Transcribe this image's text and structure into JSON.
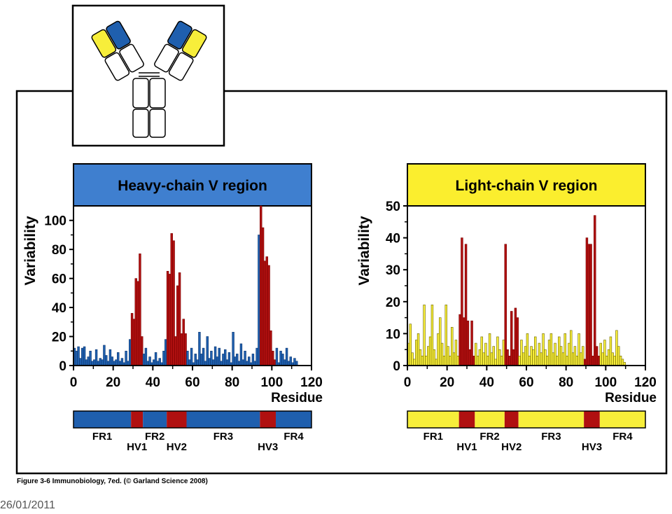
{
  "figure": {
    "caption": "Figure 3-6 Immunobiology, 7ed. (© Garland Science 2008)",
    "date": "26/01/2011"
  },
  "colors": {
    "heavy": "#1f5fae",
    "heavy_header": "#3f7fcf",
    "light": "#f7ee3a",
    "light_header": "#fbee2e",
    "hv": "#b01010",
    "hv_dark": "#7a0000"
  },
  "chart_data": [
    {
      "type": "bar",
      "title": "Heavy-chain V region",
      "xlabel": "Residue",
      "ylabel": "Variability",
      "xlim": [
        0,
        120
      ],
      "ylim": [
        0,
        110
      ],
      "xticks": [
        0,
        20,
        40,
        60,
        80,
        100,
        120
      ],
      "yticks": [
        0,
        20,
        40,
        60,
        80,
        100
      ],
      "series_colors": {
        "framework": "#1f5fae",
        "hypervariable": "#b01010"
      },
      "hypervariable_ranges": [
        [
          29,
          35
        ],
        [
          47,
          57
        ],
        [
          94,
          102
        ]
      ],
      "x": [
        1,
        2,
        3,
        4,
        5,
        6,
        7,
        8,
        9,
        10,
        11,
        12,
        13,
        14,
        15,
        16,
        17,
        18,
        19,
        20,
        21,
        22,
        23,
        24,
        25,
        26,
        27,
        28,
        29,
        30,
        31,
        32,
        33,
        34,
        35,
        36,
        37,
        38,
        39,
        40,
        41,
        42,
        43,
        44,
        45,
        46,
        47,
        48,
        49,
        50,
        51,
        52,
        53,
        54,
        55,
        56,
        57,
        58,
        59,
        60,
        61,
        62,
        63,
        64,
        65,
        66,
        67,
        68,
        69,
        70,
        71,
        72,
        73,
        74,
        75,
        76,
        77,
        78,
        79,
        80,
        81,
        82,
        83,
        84,
        85,
        86,
        87,
        88,
        89,
        90,
        91,
        92,
        93,
        94,
        95,
        96,
        97,
        98,
        99,
        100,
        101,
        102,
        103,
        104,
        105,
        106,
        107,
        108,
        109,
        110,
        111,
        112,
        113
      ],
      "values": [
        12,
        10,
        13,
        5,
        12,
        13,
        4,
        6,
        10,
        3,
        4,
        11,
        3,
        5,
        4,
        14,
        7,
        3,
        11,
        6,
        3,
        4,
        9,
        3,
        5,
        2,
        10,
        3,
        18,
        36,
        32,
        60,
        58,
        77,
        20,
        8,
        12,
        3,
        6,
        2,
        4,
        9,
        3,
        5,
        2,
        10,
        18,
        65,
        63,
        91,
        86,
        20,
        55,
        64,
        22,
        32,
        22,
        10,
        4,
        12,
        2,
        8,
        4,
        23,
        8,
        12,
        3,
        20,
        5,
        10,
        4,
        13,
        6,
        12,
        3,
        8,
        11,
        4,
        9,
        2,
        23,
        6,
        8,
        3,
        15,
        4,
        10,
        3,
        6,
        2,
        8,
        3,
        12,
        90,
        110,
        95,
        72,
        75,
        69,
        24,
        10,
        4,
        12,
        2,
        10,
        8,
        4,
        12,
        3,
        6,
        2,
        5,
        3
      ]
    },
    {
      "type": "bar",
      "title": "Light-chain V region",
      "xlabel": "Residue",
      "ylabel": "Variability",
      "xlim": [
        0,
        120
      ],
      "ylim": [
        0,
        50
      ],
      "xticks": [
        0,
        20,
        40,
        60,
        80,
        100,
        120
      ],
      "yticks": [
        0,
        10,
        20,
        30,
        40,
        50
      ],
      "series_colors": {
        "framework": "#f7ee3a",
        "hypervariable": "#b01010"
      },
      "hypervariable_ranges": [
        [
          26,
          34
        ],
        [
          49,
          56
        ],
        [
          89,
          97
        ]
      ],
      "x": [
        1,
        2,
        3,
        4,
        5,
        6,
        7,
        8,
        9,
        10,
        11,
        12,
        13,
        14,
        15,
        16,
        17,
        18,
        19,
        20,
        21,
        22,
        23,
        24,
        25,
        26,
        27,
        28,
        29,
        30,
        31,
        32,
        33,
        34,
        35,
        36,
        37,
        38,
        39,
        40,
        41,
        42,
        43,
        44,
        45,
        46,
        47,
        48,
        49,
        50,
        51,
        52,
        53,
        54,
        55,
        56,
        57,
        58,
        59,
        60,
        61,
        62,
        63,
        64,
        65,
        66,
        67,
        68,
        69,
        70,
        71,
        72,
        73,
        74,
        75,
        76,
        77,
        78,
        79,
        80,
        81,
        82,
        83,
        84,
        85,
        86,
        87,
        88,
        89,
        90,
        91,
        92,
        93,
        94,
        95,
        96,
        97,
        98,
        99,
        100,
        101,
        102,
        103,
        104,
        105,
        106,
        107,
        108,
        109,
        110
      ],
      "values": [
        7,
        13,
        4,
        2,
        8,
        10,
        5,
        3,
        19,
        3,
        6,
        9,
        19,
        5,
        2,
        10,
        15,
        7,
        3,
        19,
        6,
        3,
        12,
        4,
        8,
        3,
        16,
        40,
        15,
        38,
        14,
        5,
        14,
        3,
        7,
        3,
        5,
        9,
        4,
        7,
        3,
        10,
        4,
        6,
        2,
        9,
        5,
        3,
        8,
        38,
        5,
        3,
        17,
        5,
        18,
        15,
        3,
        8,
        4,
        6,
        10,
        3,
        6,
        5,
        9,
        3,
        7,
        4,
        10,
        5,
        3,
        8,
        10,
        4,
        7,
        3,
        9,
        6,
        4,
        10,
        3,
        7,
        11,
        4,
        6,
        3,
        10,
        4,
        6,
        2,
        40,
        38,
        38,
        3,
        47,
        6,
        3,
        7,
        4,
        8,
        3,
        5,
        9,
        4,
        3,
        11,
        6,
        3,
        2,
        1
      ]
    }
  ],
  "bars": [
    {
      "segments": [
        {
          "label": "FR1",
          "start": 0,
          "end": 29,
          "kind": "fr"
        },
        {
          "label": "HV1",
          "start": 29,
          "end": 35,
          "kind": "hv"
        },
        {
          "label": "FR2",
          "start": 35,
          "end": 47,
          "kind": "fr"
        },
        {
          "label": "HV2",
          "start": 47,
          "end": 57,
          "kind": "hv"
        },
        {
          "label": "FR3",
          "start": 57,
          "end": 94,
          "kind": "fr"
        },
        {
          "label": "HV3",
          "start": 94,
          "end": 102,
          "kind": "hv"
        },
        {
          "label": "FR4",
          "start": 102,
          "end": 120,
          "kind": "fr"
        }
      ]
    },
    {
      "segments": [
        {
          "label": "FR1",
          "start": 0,
          "end": 26,
          "kind": "fr"
        },
        {
          "label": "HV1",
          "start": 26,
          "end": 34,
          "kind": "hv"
        },
        {
          "label": "FR2",
          "start": 34,
          "end": 49,
          "kind": "fr"
        },
        {
          "label": "HV2",
          "start": 49,
          "end": 56,
          "kind": "hv"
        },
        {
          "label": "FR3",
          "start": 56,
          "end": 89,
          "kind": "fr"
        },
        {
          "label": "HV3",
          "start": 89,
          "end": 97,
          "kind": "hv"
        },
        {
          "label": "FR4",
          "start": 97,
          "end": 120,
          "kind": "fr"
        }
      ]
    }
  ]
}
